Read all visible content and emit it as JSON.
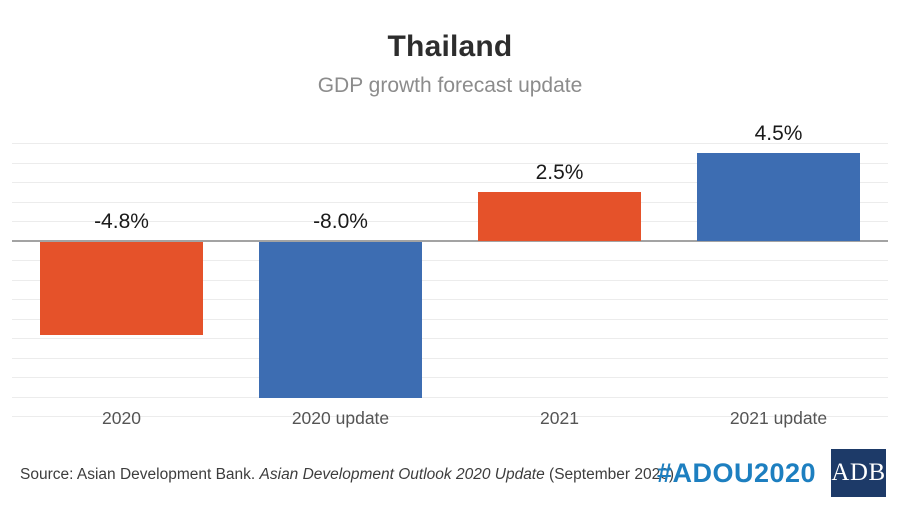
{
  "header": {
    "title": "Thailand",
    "subtitle": "GDP growth forecast update"
  },
  "chart_data": {
    "type": "bar",
    "categories": [
      "2020",
      "2020 update",
      "2021",
      "2021 update"
    ],
    "values": [
      -4.8,
      -8.0,
      2.5,
      4.5
    ],
    "value_labels": [
      "-4.8%",
      "-8.0%",
      "2.5%",
      "4.5%"
    ],
    "bar_colors": [
      "#E5522A",
      "#3D6DB2",
      "#E5522A",
      "#3D6DB2"
    ],
    "title": "Thailand",
    "subtitle": "GDP growth forecast update",
    "ylim": [
      -9,
      5
    ],
    "gridline_step": 1,
    "grid": "horizontal light gray, darker zero baseline",
    "legend": "none",
    "xlabel": "",
    "ylabel": ""
  },
  "colors": {
    "orange_bar": "#E5522A",
    "blue_bar": "#3D6DB2",
    "gridline": "#ECECEC",
    "zero_line": "#A3A3A3",
    "hashtag_blue": "#1D7FC0",
    "logo_navy": "#1D3A68"
  },
  "footer": {
    "source_prefix": "Source: Asian Development Bank. ",
    "source_italic": "Asian Development Outlook 2020 Update",
    "source_suffix": " (September 2020)",
    "hashtag": "#ADOU2020",
    "logo_text": "ADB"
  }
}
